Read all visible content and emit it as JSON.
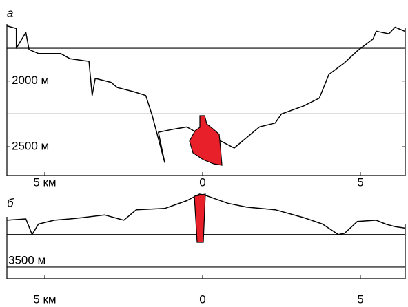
{
  "chart_data": [
    {
      "type": "line",
      "panel_label": "а",
      "xlim": [
        -6.2,
        6.42
      ],
      "xticks": [
        {
          "value": -5,
          "label": "5 км"
        },
        0,
        5
      ],
      "ylim": [
        1540,
        2720
      ],
      "y_inverted": true,
      "yticks": [
        {
          "value": 2000,
          "label": "2000 м"
        },
        {
          "value": 2500,
          "label": "2500 м"
        }
      ],
      "grid_lines": [
        1750,
        2250
      ],
      "series": [
        {
          "color": "#000000",
          "x": [
            -6.2,
            -5.9,
            -5.9,
            -5.6,
            -5.5,
            -5.2,
            -4.5,
            -4.2,
            -3.6,
            -3.5,
            -3.4,
            -2.9,
            -2.7,
            -2.2,
            -1.8,
            -1.6,
            -1.2,
            -1.4,
            -1.0,
            -0.5,
            -0.2,
            0.6,
            1.0,
            1.4,
            1.8,
            2.3,
            2.5,
            3.2,
            3.7,
            4.0,
            4.5,
            4.9,
            5.4,
            5.5,
            5.9,
            6.1,
            6.4
          ],
          "values": [
            1580,
            1600,
            1750,
            1630,
            1760,
            1790,
            1790,
            1830,
            1850,
            2110,
            1980,
            2010,
            2050,
            2080,
            2110,
            2260,
            2620,
            2390,
            2370,
            2350,
            2390,
            2460,
            2510,
            2430,
            2350,
            2320,
            2250,
            2190,
            2130,
            1950,
            1860,
            1770,
            1680,
            1620,
            1640,
            1590,
            1620
          ]
        }
      ]
    },
    {
      "type": "line",
      "panel_label": "б",
      "xlim": [
        -6.2,
        6.42
      ],
      "xticks": [
        {
          "value": -5,
          "label": "5 км"
        },
        0,
        5
      ],
      "ylim": [
        2850,
        3590
      ],
      "y_inverted": true,
      "yticks": [
        {
          "value": 3500,
          "label": "3500 м"
        }
      ],
      "grid_lines": [
        3250,
        3500
      ],
      "series": [
        {
          "color": "#000000",
          "x": [
            -6.2,
            -5.6,
            -5.4,
            -5.2,
            -4.7,
            -4.2,
            -3.8,
            -3.1,
            -2.5,
            -2.1,
            -1.2,
            -0.5,
            -0.1,
            0.1,
            0.8,
            1.4,
            2.3,
            3.2,
            3.8,
            4.3,
            4.5,
            4.9,
            5.5,
            5.8,
            6.1,
            6.4
          ],
          "values": [
            3140,
            3130,
            3250,
            3170,
            3140,
            3130,
            3120,
            3100,
            3140,
            3060,
            3050,
            2990,
            2940,
            2950,
            3010,
            3040,
            3060,
            3120,
            3170,
            3250,
            3240,
            3150,
            3140,
            3170,
            3190,
            3200
          ]
        }
      ]
    }
  ]
}
